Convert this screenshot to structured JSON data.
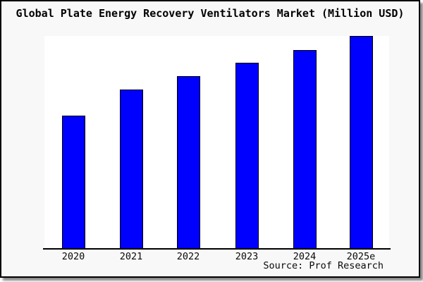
{
  "title": "Global Plate Energy Recovery Ventilators Market (Million USD)",
  "source_label": "Source: Prof Research",
  "colors": {
    "frame_background": "#f8f8f8",
    "plot_background": "#ffffff",
    "bar_fill": "#0000fe",
    "bar_border": "#000000",
    "axis_line": "#000000",
    "text": "#000000",
    "frame_border": "#000000",
    "drop_shadow": "#8a8a8a"
  },
  "chart_data": {
    "type": "bar",
    "title": "Global Plate Energy Recovery Ventilators Market (Million USD)",
    "categories": [
      "2020",
      "2021",
      "2022",
      "2023",
      "2024",
      "2025e"
    ],
    "series": [
      {
        "name": "Global Plate Energy Recovery Ventilators Market",
        "values_relative": [
          62.6,
          74.8,
          81.1,
          87.4,
          93.4,
          100.0
        ]
      }
    ],
    "value_note": "No y-axis scale is shown in the image; values are bar heights normalized so 2025e = 100",
    "xlabel": "",
    "ylabel": "",
    "ylim_relative": [
      0,
      100
    ],
    "y_axis_ticks": "none",
    "grid": false,
    "legend": "none",
    "bar_color": "#0000fe",
    "source": "Source: Prof Research"
  }
}
